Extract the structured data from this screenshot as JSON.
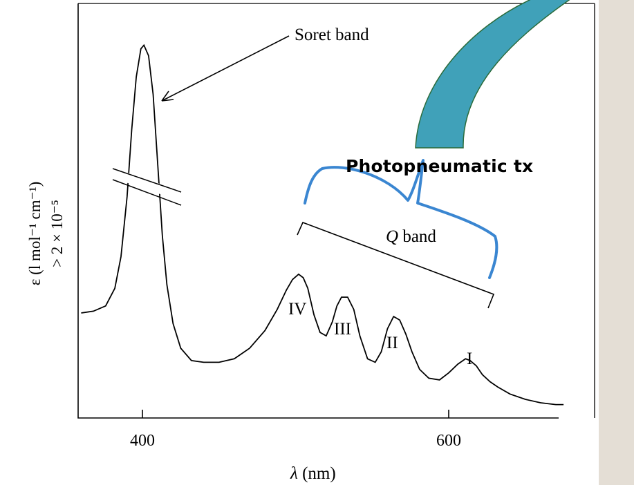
{
  "chart_data": {
    "type": "line",
    "xlabel": "λ (nm)",
    "ylabel_line1": "ε (l mol⁻¹ cm⁻¹)",
    "ylabel_line2": "> 2 × 10⁻⁵",
    "x_ticks": [
      400,
      600
    ],
    "xlim": [
      360,
      680
    ],
    "axis_break": true,
    "grid": false,
    "series": [
      {
        "x": [
          360,
          368,
          376,
          382,
          386,
          390,
          393,
          396,
          399,
          401,
          404,
          407,
          410,
          413,
          416,
          420,
          425,
          432,
          440,
          450,
          460,
          470,
          480,
          488,
          494,
          498,
          502,
          505,
          508,
          512,
          516,
          520,
          524,
          527,
          530,
          534,
          538,
          542,
          547,
          552,
          556,
          560,
          564,
          568,
          572,
          576,
          581,
          587,
          594,
          600,
          606,
          611,
          614,
          618,
          622,
          627,
          632,
          640,
          650,
          660,
          670,
          675
        ],
        "y": [
          0.2,
          0.205,
          0.22,
          0.27,
          0.36,
          0.53,
          0.72,
          0.87,
          0.95,
          0.96,
          0.93,
          0.82,
          0.62,
          0.42,
          0.28,
          0.17,
          0.1,
          0.065,
          0.06,
          0.06,
          0.07,
          0.1,
          0.15,
          0.21,
          0.265,
          0.295,
          0.31,
          0.3,
          0.27,
          0.195,
          0.145,
          0.135,
          0.175,
          0.22,
          0.245,
          0.245,
          0.21,
          0.135,
          0.07,
          0.06,
          0.09,
          0.155,
          0.19,
          0.18,
          0.14,
          0.09,
          0.04,
          0.015,
          0.01,
          0.03,
          0.055,
          0.07,
          0.065,
          0.05,
          0.025,
          0.005,
          -0.01,
          -0.03,
          -0.045,
          -0.055,
          -0.06,
          -0.06
        ]
      }
    ],
    "annotations": {
      "soret": "Soret band",
      "q_band": "Q band",
      "peaks": [
        "IV",
        "III",
        "II",
        "I"
      ]
    }
  },
  "overlay": {
    "label": "Photopneumatic tx",
    "arrow_color": "#40a1b9",
    "arrow_stroke": "#2a6b3b",
    "brace_color": "#3a86d1"
  }
}
